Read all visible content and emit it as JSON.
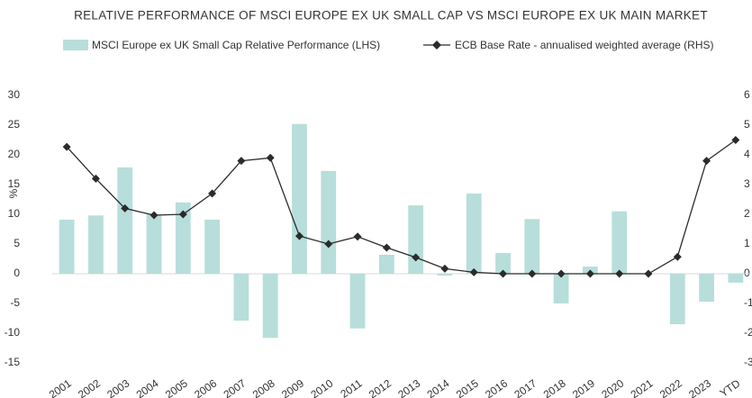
{
  "chart_data": {
    "type": "bar_line",
    "title": "RELATIVE PERFORMANCE OF MSCI EUROPE EX UK SMALL CAP VS MSCI EUROPE EX UK MAIN MARKET",
    "ylabel": "%",
    "categories": [
      "2001",
      "2002",
      "2003",
      "2004",
      "2005",
      "2006",
      "2007",
      "2008",
      "2009",
      "2010",
      "2011",
      "2012",
      "2013",
      "2014",
      "2015",
      "2016",
      "2017",
      "2018",
      "2019",
      "2020",
      "2021",
      "2022",
      "2023",
      "YTD"
    ],
    "series": [
      {
        "name": "MSCI Europe ex UK Small Cap Relative Performance (LHS)",
        "color": "#b7dedb",
        "type": "bar",
        "values": [
          9.1,
          9.8,
          17.9,
          10,
          12,
          9.1,
          -7.9,
          -10.8,
          25.2,
          17.3,
          -9.2,
          3.2,
          11.5,
          -0.3,
          13.5,
          3.5,
          9.2,
          -5,
          1.2,
          10.5,
          0,
          -8.5,
          -4.7,
          -1.5
        ]
      },
      {
        "name": "ECB Base Rate - annualised weighted average (RHS)",
        "color": "#2b2b2b",
        "type": "line",
        "axis": "y2",
        "values": [
          4.27,
          3.2,
          2.2,
          1.97,
          2.0,
          2.7,
          3.8,
          3.9,
          1.27,
          1.0,
          1.25,
          0.88,
          0.55,
          0.17,
          0.05,
          0,
          0,
          0,
          0,
          0,
          0,
          0.57,
          3.8,
          4.5
        ]
      }
    ],
    "ylim": [
      -15,
      30
    ],
    "yticks": [
      -15,
      -10,
      -5,
      0,
      5,
      10,
      15,
      20,
      25,
      30
    ],
    "y2lim": [
      -3,
      6
    ],
    "y2ticks": [
      -3,
      -2,
      -1,
      0,
      1,
      2,
      3,
      4,
      5,
      6
    ]
  }
}
